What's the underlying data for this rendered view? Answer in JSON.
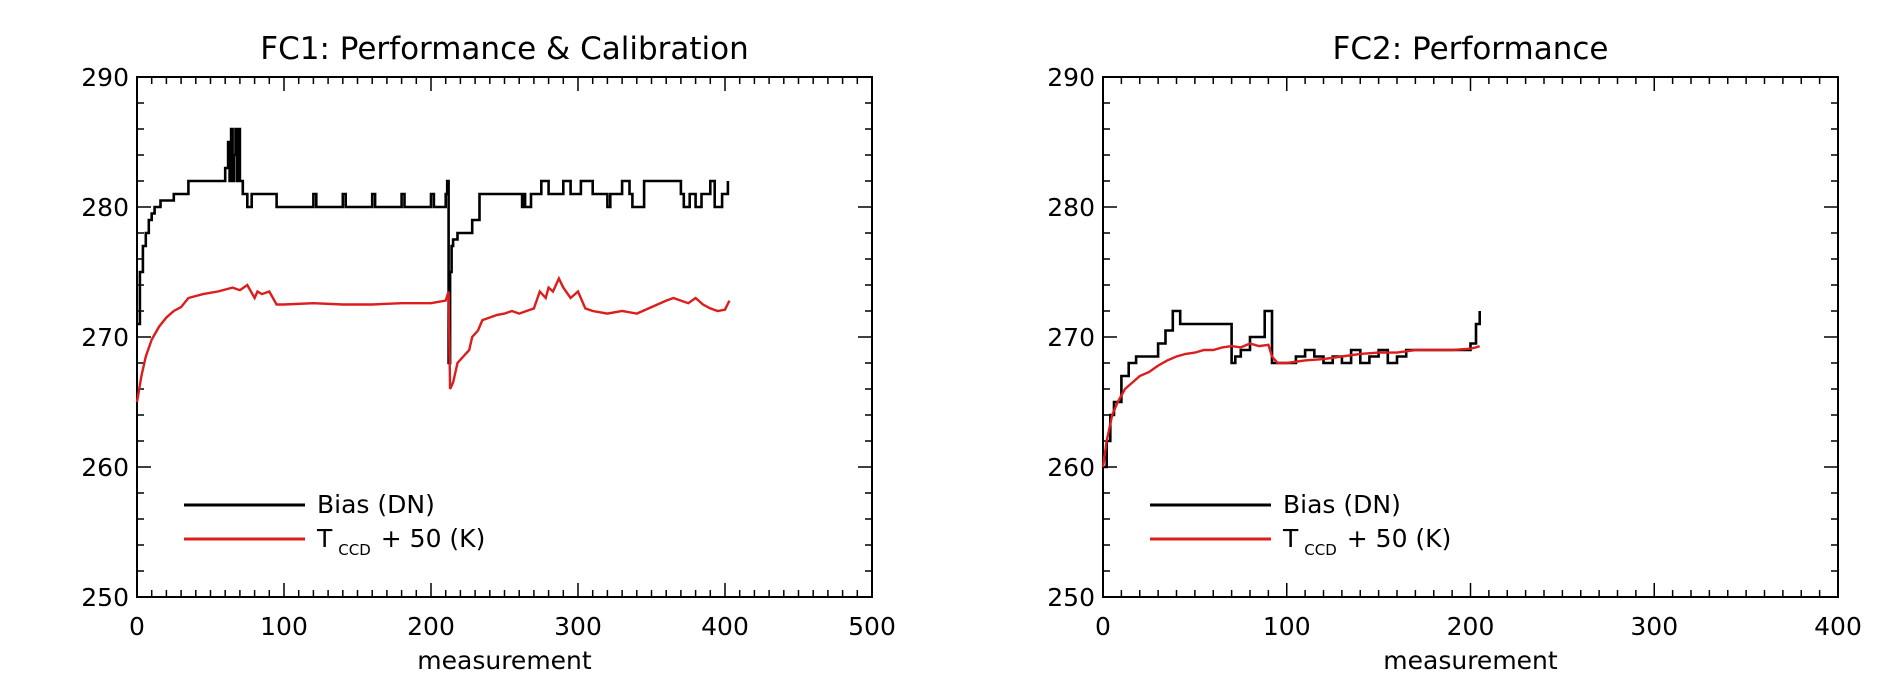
{
  "chart_data": [
    {
      "type": "line",
      "title": "FC1: Performance & Calibration",
      "xlabel": "measurement",
      "ylabel": "",
      "xlim": [
        0,
        500
      ],
      "ylim": [
        250,
        290
      ],
      "xticks": [
        0,
        100,
        200,
        300,
        400,
        500
      ],
      "yticks": [
        250,
        260,
        270,
        280,
        290
      ],
      "legend": {
        "placement": "bottom-left",
        "entries": [
          {
            "text": "Bias (DN)",
            "color": "#000000"
          },
          {
            "prefix": "T",
            "subscript": "CCD",
            "suffix": "+ 50 (K)",
            "color": "#dd1c1c"
          }
        ]
      },
      "series": [
        {
          "color": "#000000",
          "step": true,
          "x": [
            0,
            2,
            4,
            6,
            8,
            10,
            12,
            16,
            20,
            25,
            35,
            55,
            60,
            62,
            63,
            64,
            65,
            66,
            67,
            68,
            69,
            70,
            72,
            75,
            78,
            82,
            88,
            92,
            95,
            100,
            110,
            120,
            122,
            130,
            140,
            142,
            150,
            160,
            162,
            170,
            180,
            182,
            190,
            200,
            202,
            208,
            210,
            211,
            212,
            213,
            214,
            215,
            218,
            222,
            228,
            233,
            235,
            240,
            250,
            260,
            262,
            263,
            264,
            268,
            270,
            275,
            280,
            285,
            290,
            295,
            300,
            302,
            310,
            320,
            322,
            330,
            335,
            337,
            345,
            352,
            360,
            370,
            372,
            376,
            380,
            384,
            390,
            393,
            398,
            402
          ],
          "y": [
            271,
            275,
            277,
            278,
            279,
            279.5,
            280,
            280.5,
            280.5,
            281,
            282,
            282,
            283,
            285,
            282,
            286,
            282,
            284,
            286,
            282,
            286,
            282,
            281,
            280,
            281,
            281,
            281,
            281,
            280,
            280,
            280,
            281,
            280,
            280,
            281,
            280,
            280,
            281,
            280,
            280,
            281,
            280,
            280,
            281,
            280,
            280,
            281,
            282,
            268,
            275,
            277,
            277.5,
            278,
            278,
            279,
            281,
            281,
            281,
            281,
            281,
            280,
            281,
            280,
            281,
            281,
            282,
            281,
            281,
            282,
            281,
            281,
            282,
            281,
            280,
            281,
            282,
            281,
            280,
            282,
            282,
            282,
            281,
            280,
            281,
            280,
            281,
            282,
            280,
            281,
            282
          ]
        },
        {
          "color": "#dd1c1c",
          "step": false,
          "x": [
            0,
            3,
            6,
            10,
            15,
            20,
            25,
            30,
            35,
            45,
            55,
            65,
            70,
            75,
            80,
            82,
            85,
            90,
            95,
            100,
            120,
            140,
            160,
            180,
            200,
            210,
            212,
            213,
            215,
            218,
            222,
            226,
            228,
            232,
            235,
            240,
            245,
            250,
            255,
            260,
            265,
            270,
            274,
            278,
            280,
            283,
            287,
            290,
            295,
            300,
            305,
            310,
            320,
            330,
            340,
            350,
            360,
            365,
            370,
            375,
            380,
            385,
            390,
            395,
            400,
            403
          ],
          "y": [
            265,
            267,
            268.5,
            269.8,
            270.8,
            271.5,
            272,
            272.3,
            273,
            273.3,
            273.5,
            273.8,
            273.6,
            274,
            273,
            273.5,
            273.3,
            273.5,
            272.5,
            272.5,
            272.6,
            272.5,
            272.5,
            272.6,
            272.6,
            272.8,
            273.5,
            266,
            266.5,
            268,
            268.5,
            269,
            270,
            270.5,
            271.3,
            271.5,
            271.7,
            271.8,
            272,
            271.8,
            272,
            272.2,
            273.5,
            273,
            273.8,
            273.5,
            274.5,
            273.8,
            273,
            273.5,
            272.2,
            272,
            271.8,
            272,
            271.8,
            272.3,
            272.8,
            273,
            272.8,
            272.6,
            273,
            272.5,
            272.2,
            272,
            272.1,
            272.8
          ]
        }
      ]
    },
    {
      "type": "line",
      "title": "FC2: Performance",
      "xlabel": "measurement",
      "ylabel": "",
      "xlim": [
        0,
        400
      ],
      "ylim": [
        250,
        290
      ],
      "xticks": [
        0,
        100,
        200,
        300,
        400
      ],
      "yticks": [
        250,
        260,
        270,
        280,
        290
      ],
      "legend": {
        "placement": "bottom-left",
        "entries": [
          {
            "text": "Bias (DN)",
            "color": "#000000"
          },
          {
            "prefix": "T",
            "subscript": "CCD",
            "suffix": "+ 50 (K)",
            "color": "#dd1c1c"
          }
        ]
      },
      "series": [
        {
          "color": "#000000",
          "step": true,
          "x": [
            0,
            2,
            4,
            6,
            10,
            14,
            18,
            24,
            30,
            34,
            38,
            42,
            50,
            60,
            70,
            72,
            75,
            80,
            88,
            92,
            95,
            100,
            105,
            110,
            115,
            120,
            125,
            130,
            135,
            140,
            145,
            150,
            155,
            160,
            165,
            170,
            180,
            190,
            200,
            203,
            205
          ],
          "y": [
            260,
            262,
            264,
            265,
            267,
            268,
            268.5,
            268.5,
            269.5,
            270.5,
            272,
            271,
            271,
            271,
            268,
            268.5,
            269,
            270,
            272,
            268,
            268,
            268,
            268.5,
            269,
            268.5,
            268,
            268.5,
            268,
            269,
            268,
            268.5,
            269,
            268,
            268.5,
            269,
            269,
            269,
            269,
            269.5,
            271,
            272
          ]
        },
        {
          "color": "#dd1c1c",
          "step": false,
          "x": [
            0,
            2,
            5,
            8,
            12,
            16,
            20,
            25,
            30,
            35,
            40,
            45,
            50,
            55,
            60,
            65,
            70,
            75,
            80,
            85,
            90,
            92,
            95,
            100,
            110,
            120,
            130,
            140,
            150,
            160,
            170,
            180,
            190,
            200,
            203,
            205
          ],
          "y": [
            260,
            262,
            264,
            265,
            266,
            266.5,
            267,
            267.3,
            267.8,
            268.2,
            268.5,
            268.7,
            268.8,
            269,
            269,
            269.2,
            269.3,
            269.2,
            269.5,
            269.3,
            269.4,
            268.5,
            268,
            268,
            268.2,
            268.3,
            268.5,
            268.7,
            268.8,
            268.8,
            269,
            269,
            269,
            269.1,
            269.2,
            269.3
          ]
        }
      ]
    }
  ]
}
